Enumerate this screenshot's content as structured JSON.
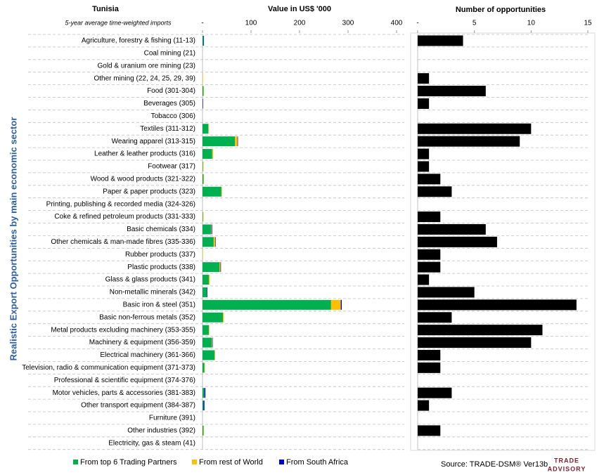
{
  "title": "Tunisia",
  "subtitle": "5-year average time-weighted imports",
  "source": "Source: TRADE-DSM® Ver13b",
  "logo": [
    "TRADE",
    "ADVISORY"
  ],
  "chart_data": [
    {
      "type": "stacked-bar",
      "orientation": "horizontal",
      "xlabel": "Value in US$ '000",
      "ylabel": "Realistic Export Opportunities by main economic sector",
      "categories": [
        "Agriculture, forestry & fishing (11-13)",
        "Coal mining (21)",
        "Gold & uranium ore mining (23)",
        "Other mining (22, 24, 25, 29, 39)",
        "Food (301-304)",
        "Beverages (305)",
        "Tobacco (306)",
        "Textiles (311-312)",
        "Wearing apparel (313-315)",
        "Leather & leather products (316)",
        "Footwear (317)",
        "Wood & wood products (321-322)",
        "Paper & paper products (323)",
        "Printing, publishing & recorded media (324-326)",
        "Coke & refined petroleum products (331-333)",
        "Basic chemicals (334)",
        "Other chemicals & man-made fibres (335-336)",
        "Rubber products (337)",
        "Plastic products (338)",
        "Glass & glass products (341)",
        "Non-metallic minerals (342)",
        "Basic iron & steel (351)",
        "Basic non-ferrous metals (352)",
        "Metal products excluding machinery (353-355)",
        "Machinery & equipment (356-359)",
        "Electrical machinery (361-366)",
        "Television, radio & communication equipment (371-373)",
        "Professional & scientific equipment (374-376)",
        "Motor vehicles, parts & accessories (381-383)",
        "Other transport equipment (384-387)",
        "Furniture (391)",
        "Other industries (392)",
        "Electricity, gas & steam (41)"
      ],
      "series": [
        {
          "name": "From top 6 Trading Partners",
          "color": "#00b050",
          "values": [
            2,
            0,
            0,
            0,
            2,
            0,
            0,
            12,
            67,
            20,
            1,
            2,
            39,
            0,
            1,
            18,
            23,
            0,
            35,
            13,
            9,
            265,
            42,
            13,
            19,
            25,
            4,
            0,
            4,
            2,
            0,
            2,
            0
          ]
        },
        {
          "name": "From rest of World",
          "color": "#ffc000",
          "values": [
            0,
            0,
            0,
            1,
            1,
            0,
            0,
            1,
            5,
            2,
            1,
            1,
            1,
            0,
            1,
            1,
            3,
            1,
            2,
            2,
            0,
            20,
            2,
            1,
            1,
            1,
            1,
            0,
            0,
            0,
            0,
            1,
            0
          ]
        },
        {
          "name": "From South Africa",
          "color": "#0000cc",
          "values": [
            1,
            0,
            0,
            0,
            0,
            1,
            0,
            0,
            1,
            0,
            0,
            0,
            0,
            0,
            0,
            1,
            1,
            0,
            1,
            0,
            1,
            2,
            0,
            0,
            1,
            0,
            0,
            0,
            2,
            2,
            0,
            0,
            0
          ]
        }
      ],
      "xlim": [
        0,
        400
      ],
      "xticks": [
        {
          "value": 0,
          "label": "-"
        },
        100,
        200,
        300,
        400
      ]
    },
    {
      "type": "bar",
      "orientation": "horizontal",
      "xlabel": "Number of opportunities",
      "color": "#000000",
      "values": [
        4,
        0,
        0,
        1,
        6,
        1,
        0,
        10,
        9,
        1,
        1,
        2,
        3,
        0,
        2,
        6,
        7,
        2,
        2,
        1,
        5,
        14,
        3,
        11,
        10,
        2,
        2,
        0,
        3,
        1,
        0,
        2,
        0
      ],
      "xlim": [
        0,
        15
      ],
      "xticks": [
        {
          "value": 0,
          "label": "-"
        },
        5,
        10,
        15
      ]
    }
  ]
}
